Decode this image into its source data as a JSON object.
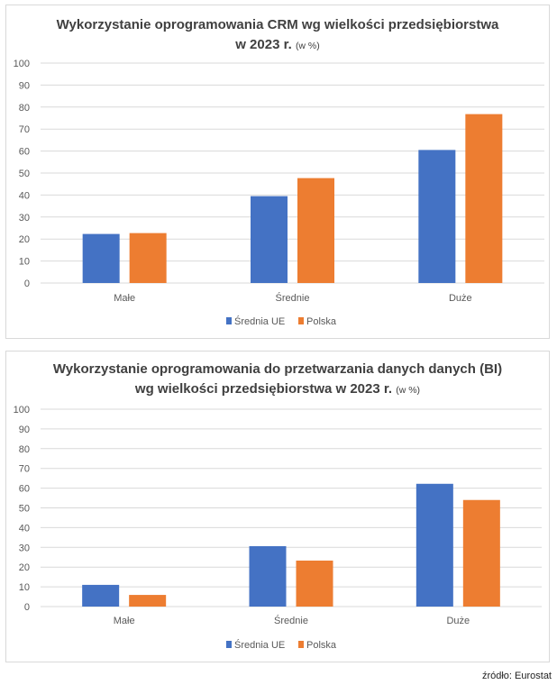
{
  "chart_data": [
    {
      "type": "bar",
      "title": "Wykorzystanie oprogramowania CRM wg wielkości przedsiębiorstwa",
      "title_line2": "w 2023 r.",
      "title_unit": "(w %)",
      "categories": [
        "Małe",
        "Średnie",
        "Duże"
      ],
      "series": [
        {
          "name": "Średnia UE",
          "color": "#4472c4",
          "values": [
            22.3,
            39.5,
            60.5
          ]
        },
        {
          "name": "Polska",
          "color": "#ed7d31",
          "values": [
            22.7,
            47.7,
            76.8
          ]
        }
      ],
      "yticks": [
        "0",
        "10",
        "20",
        "30",
        "40",
        "50",
        "60",
        "70",
        "80",
        "90",
        "100"
      ],
      "ylim": [
        0,
        100
      ],
      "grid": true,
      "legend": "bottom"
    },
    {
      "type": "bar",
      "title": "Wykorzystanie oprogramowania do przetwarzania danych danych (BI)",
      "title_line2": "wg wielkości przedsiębiorstwa w 2023 r.",
      "title_unit": "(w %)",
      "categories": [
        "Małe",
        "Średnie",
        "Duże"
      ],
      "series": [
        {
          "name": "Średnia UE",
          "color": "#4472c4",
          "values": [
            11.0,
            30.6,
            62.2
          ]
        },
        {
          "name": "Polska",
          "color": "#ed7d31",
          "values": [
            5.9,
            23.3,
            54.0
          ]
        }
      ],
      "yticks": [
        "0",
        "10",
        "20",
        "30",
        "40",
        "50",
        "60",
        "70",
        "80",
        "90",
        "100"
      ],
      "ylim": [
        0,
        100
      ],
      "grid": true,
      "legend": "bottom"
    }
  ],
  "source": "źródło: Eurostat"
}
